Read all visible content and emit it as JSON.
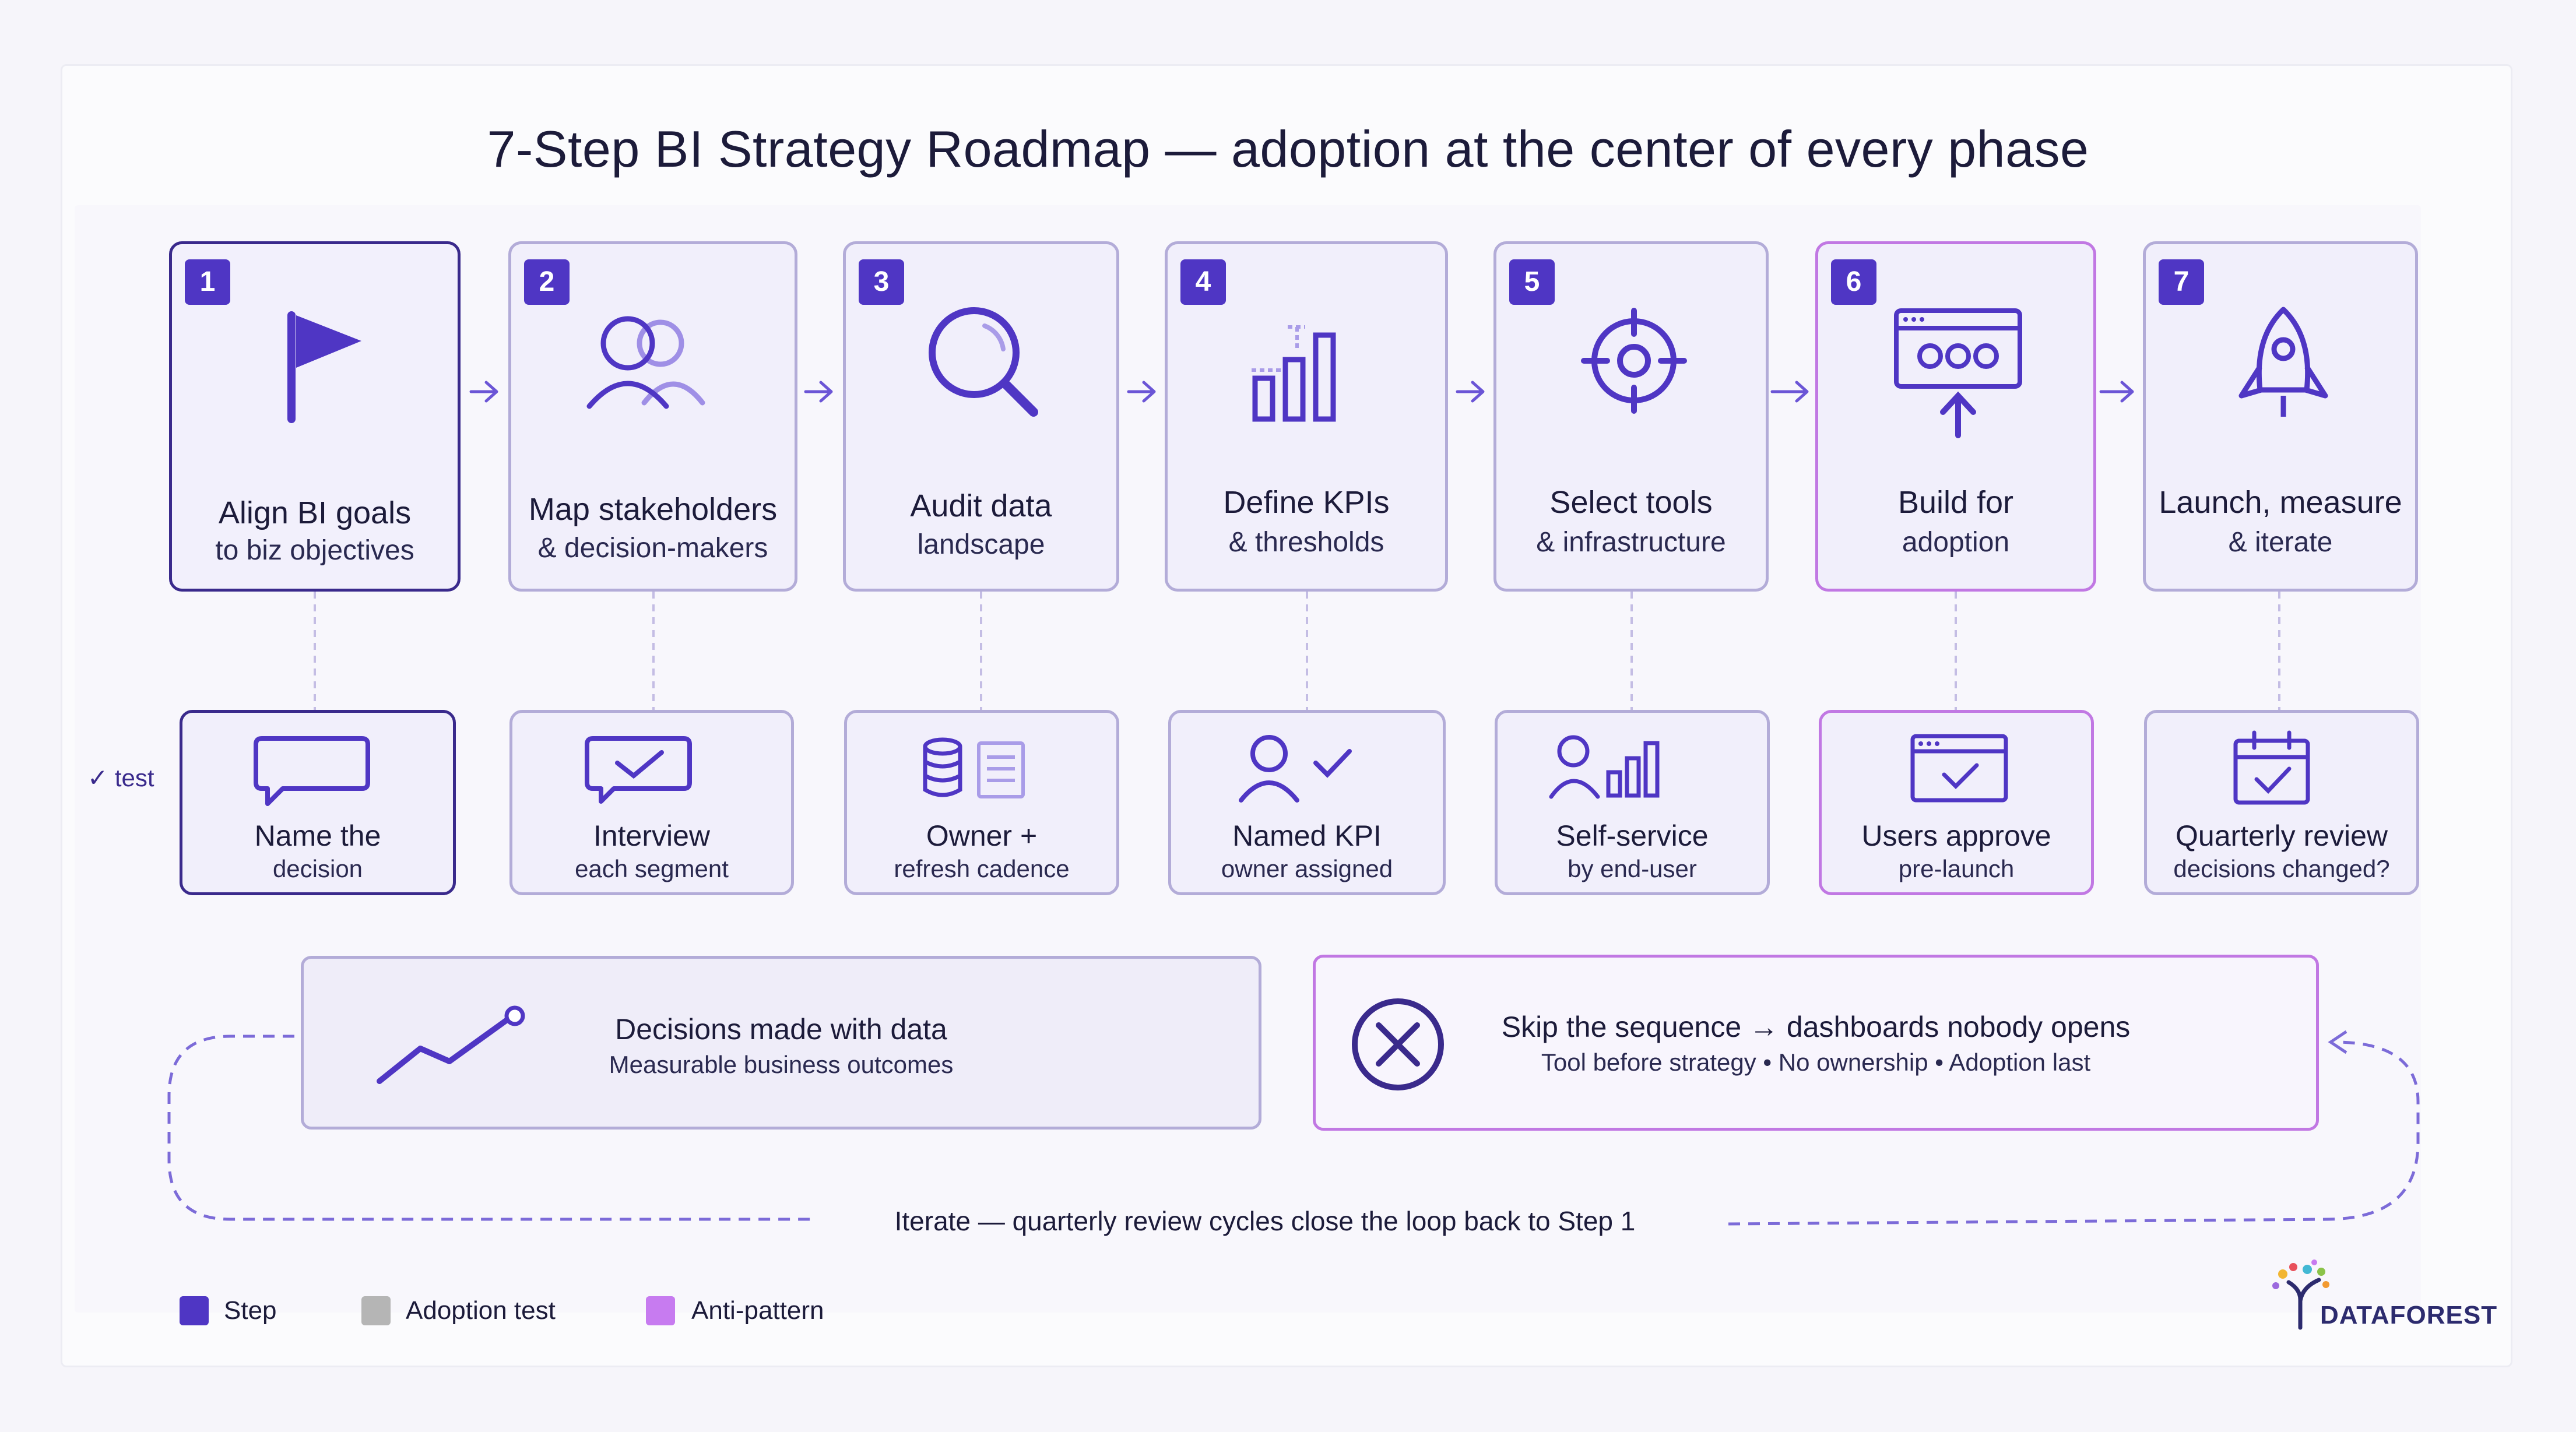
{
  "title": "7-Step BI Strategy Roadmap — adoption at the center of every phase",
  "colors": {
    "step": "#4f36c4",
    "adoption_test": "#b5b5b5",
    "anti_pattern": "#c77bf0",
    "border": "#b3acd8",
    "ink": "#1c1b3a"
  },
  "steps": [
    {
      "number": "1",
      "line1": "Align BI goals",
      "line2": "to biz objectives",
      "icon": "flag-icon"
    },
    {
      "number": "2",
      "line1": "Map stakeholders",
      "line2": "& decision-makers",
      "icon": "users-icon"
    },
    {
      "number": "3",
      "line1": "Audit data",
      "line2": "landscape",
      "icon": "magnifier-icon"
    },
    {
      "number": "4",
      "line1": "Define KPIs",
      "line2": "& thresholds",
      "icon": "bar-chart-icon"
    },
    {
      "number": "5",
      "line1": "Select tools",
      "line2": "& infrastructure",
      "icon": "target-icon"
    },
    {
      "number": "6",
      "line1": "Build for",
      "line2": "adoption",
      "icon": "dashboard-upload-icon"
    },
    {
      "number": "7",
      "line1": "Launch, measure",
      "line2": "& iterate",
      "icon": "rocket-icon"
    }
  ],
  "tests": [
    {
      "line1": "Name the",
      "line2": "decision",
      "icon": "speech-bubble-icon"
    },
    {
      "line1": "Interview",
      "line2": "each segment",
      "icon": "chat-check-icon"
    },
    {
      "line1": "Owner +",
      "line2": "refresh cadence",
      "icon": "database-doc-icon"
    },
    {
      "line1": "Named KPI",
      "line2": "owner assigned",
      "icon": "user-check-icon"
    },
    {
      "line1": "Self-service",
      "line2": "by end-user",
      "icon": "user-chart-icon"
    },
    {
      "line1": "Users approve",
      "line2": "pre-launch",
      "icon": "window-check-icon"
    },
    {
      "line1": "Quarterly review",
      "line2": "decisions changed?",
      "icon": "calendar-check-icon"
    }
  ],
  "side_label": "✓ test",
  "outcome_good": {
    "title": "Decisions made with data",
    "subtitle": "Measurable business outcomes",
    "icon": "trend-line-icon"
  },
  "outcome_bad": {
    "title": "Skip the sequence → dashboards nobody opens",
    "subtitle": "Tool before strategy • No ownership • Adoption last",
    "icon": "x-circle-icon"
  },
  "loop_label": "Iterate — quarterly review cycles close the loop back to Step 1",
  "legend": [
    {
      "label": "Step",
      "color": "#4f36c4"
    },
    {
      "label": "Adoption test",
      "color": "#b5b5b5"
    },
    {
      "label": "Anti-pattern",
      "color": "#c77bf0"
    }
  ],
  "logo": "DATAFOREST"
}
